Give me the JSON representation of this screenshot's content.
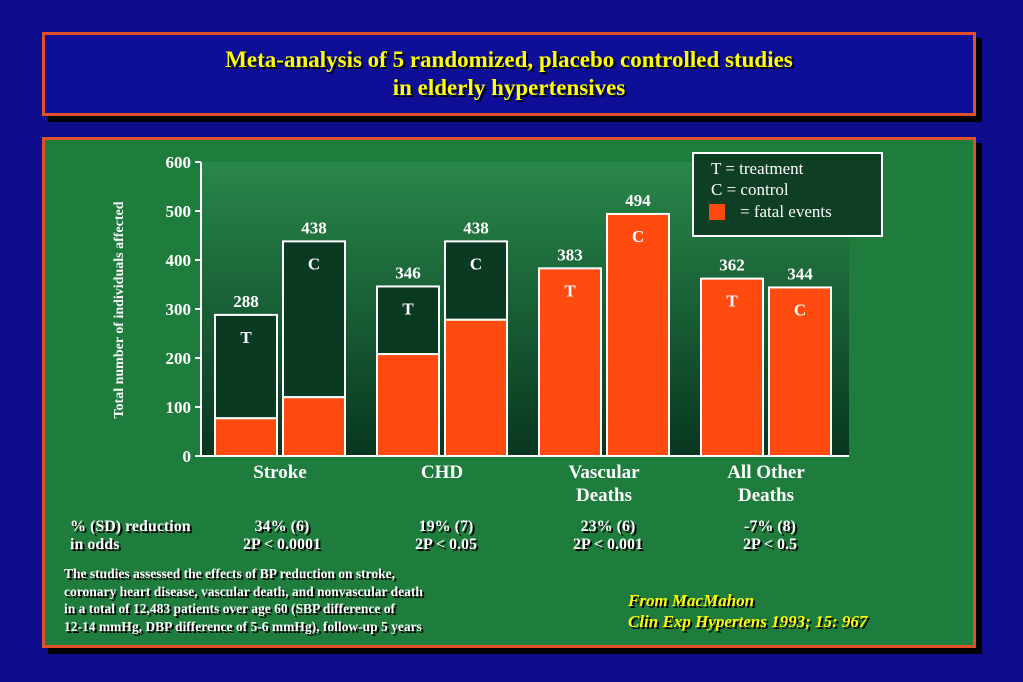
{
  "title": {
    "line1": "Meta-analysis  of  5  randomized,  placebo controlled  studies",
    "line2": "in  elderly  hypertensives"
  },
  "colors": {
    "background": "#0c0c8c",
    "panel": "#1e7d3c",
    "border": "#e0502a",
    "fatal": "#ff4a10",
    "nonfatal": "#0b3a22",
    "title_text": "#ffff00"
  },
  "chart_data": {
    "type": "bar",
    "ylabel": "Total number of individuals affected",
    "ylim": [
      0,
      600
    ],
    "yticks": [
      "0",
      "100",
      "200",
      "300",
      "400",
      "500",
      "600"
    ],
    "categories": [
      {
        "line1": "Stroke",
        "line2": ""
      },
      {
        "line1": "CHD",
        "line2": ""
      },
      {
        "line1": "Vascular",
        "line2": "Deaths"
      },
      {
        "line1": "All  Other",
        "line2": "Deaths"
      }
    ],
    "bars": [
      {
        "category": "Stroke",
        "group": "T",
        "total": 288,
        "fatal": 77,
        "total_label": "288",
        "group_label": "T"
      },
      {
        "category": "Stroke",
        "group": "C",
        "total": 438,
        "fatal": 120,
        "total_label": "438",
        "group_label": "C"
      },
      {
        "category": "CHD",
        "group": "T",
        "total": 346,
        "fatal": 208,
        "total_label": "346",
        "group_label": "T"
      },
      {
        "category": "CHD",
        "group": "C",
        "total": 438,
        "fatal": 278,
        "total_label": "438",
        "group_label": "C"
      },
      {
        "category": "Vascular Deaths",
        "group": "T",
        "total": 383,
        "fatal": 383,
        "total_label": "383",
        "group_label": "T"
      },
      {
        "category": "Vascular Deaths",
        "group": "C",
        "total": 494,
        "fatal": 494,
        "total_label": "494",
        "group_label": "C"
      },
      {
        "category": "All Other Deaths",
        "group": "T",
        "total": 362,
        "fatal": 362,
        "total_label": "362",
        "group_label": "T"
      },
      {
        "category": "All Other Deaths",
        "group": "C",
        "total": 344,
        "fatal": 344,
        "total_label": "344",
        "group_label": "C"
      }
    ],
    "legend": {
      "placement": "top-right",
      "items": [
        "T  = treatment",
        "C  = control",
        "= fatal   events"
      ]
    }
  },
  "stats": {
    "label_line1": "%  (SD)  reduction",
    "label_line2": "in odds",
    "columns": [
      {
        "line1": "34% (6)",
        "line2": "2P < 0.0001"
      },
      {
        "line1": "19% (7)",
        "line2": "2P < 0.05"
      },
      {
        "line1": "23% (6)",
        "line2": "2P < 0.001"
      },
      {
        "line1": "-7% (8)",
        "line2": "2P < 0.5"
      }
    ]
  },
  "note": {
    "line1": "The studies  assessed the  effects  of  BP  reduction  on stroke,",
    "line2": "coronary  heart  disease,  vascular death,  and  nonvascular death",
    "line3": "in  a  total  of  12,483  patients over age  60 (SBP difference  of",
    "line4": "12-14 mmHg, DBP  difference  of 5-6 mmHg), follow-up 5  years"
  },
  "source": {
    "line1": "From   MacMahon",
    "line2": "Clin  Exp  Hypertens  1993; 15: 967"
  }
}
